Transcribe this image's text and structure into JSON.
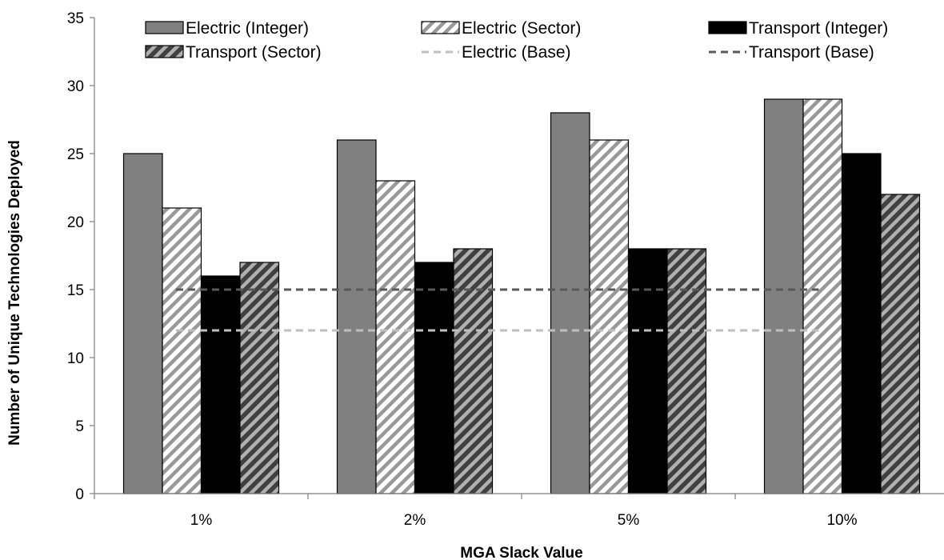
{
  "chart_data": {
    "type": "bar",
    "title": "",
    "xlabel": "MGA Slack Value",
    "ylabel": "Number of Unique Technologies Deployed",
    "categories": [
      "1%",
      "2%",
      "5%",
      "10%"
    ],
    "ylim": [
      0,
      35
    ],
    "yticks": [
      0,
      5,
      10,
      15,
      20,
      25,
      30,
      35
    ],
    "grid": false,
    "legend_placement": "top",
    "series": [
      {
        "name": "Electric (Integer)",
        "values": [
          25,
          26,
          28,
          29
        ],
        "fill": "#808080",
        "pattern": "solid"
      },
      {
        "name": "Electric (Sector)",
        "values": [
          21,
          23,
          26,
          29
        ],
        "fill": "#ffffff",
        "pattern": "hatch-light"
      },
      {
        "name": "Transport (Integer)",
        "values": [
          16,
          17,
          18,
          25
        ],
        "fill": "#000000",
        "pattern": "solid"
      },
      {
        "name": "Transport (Sector)",
        "values": [
          17,
          18,
          18,
          22
        ],
        "fill": "#808080",
        "pattern": "hatch-dark"
      }
    ],
    "reference_lines": [
      {
        "name": "Electric (Base)",
        "value": 12,
        "color": "#bfbfbf",
        "style": "dashed"
      },
      {
        "name": "Transport (Base)",
        "value": 15,
        "color": "#595959",
        "style": "dashed"
      }
    ],
    "legend_order": [
      "Electric (Integer)",
      "Electric (Sector)",
      "Transport (Integer)",
      "Transport (Sector)",
      "Electric (Base)",
      "Transport (Base)"
    ]
  }
}
